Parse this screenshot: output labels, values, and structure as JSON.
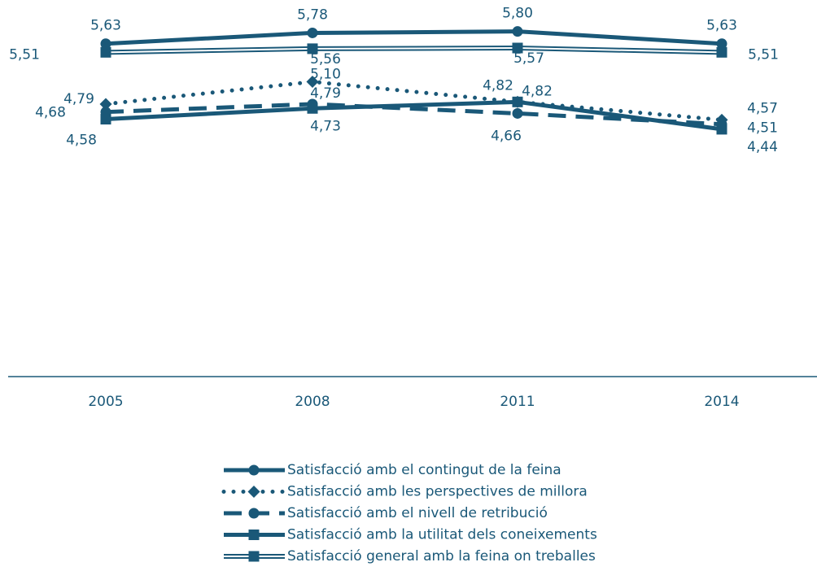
{
  "chart_data": {
    "type": "line",
    "categories": [
      "2005",
      "2008",
      "2011",
      "2014"
    ],
    "ylim": [
      1,
      6
    ],
    "series": [
      {
        "name": "Satisfacció amb el contingut de la feina",
        "color": "#1a5878",
        "style": "solid",
        "marker": "circle",
        "values": [
          5.63,
          5.78,
          5.8,
          5.63
        ],
        "value_labels": [
          "5,63",
          "5,78",
          "5,80",
          "5,63"
        ]
      },
      {
        "name": "Satisfacció amb les perspectives de millora",
        "color": "#1a5878",
        "style": "dotted",
        "marker": "diamond",
        "values": [
          4.79,
          5.1,
          4.82,
          4.57
        ],
        "value_labels": [
          "4,79",
          "5,10",
          "4,82",
          "4,57"
        ]
      },
      {
        "name": "Satisfacció amb el nivell de retribució",
        "color": "#1a5878",
        "style": "dashed",
        "marker": "circle",
        "values": [
          4.68,
          4.79,
          4.66,
          4.51
        ],
        "value_labels": [
          "4,68",
          "4,79",
          "4,66",
          "4,51"
        ]
      },
      {
        "name": "Satisfacció amb la utilitat dels coneixements",
        "color": "#1a5878",
        "style": "solid",
        "marker": "square",
        "values": [
          4.58,
          4.73,
          4.82,
          4.44
        ],
        "value_labels": [
          "4,58",
          "4,73",
          "4,82",
          "4,44"
        ]
      },
      {
        "name": "Satisfacció general amb la feina on treballes",
        "color": "#1a5878",
        "style": "double",
        "marker": "square",
        "values": [
          5.51,
          5.56,
          5.57,
          5.51
        ],
        "value_labels": [
          "5,51",
          "5,56",
          "5,57",
          "5,51"
        ]
      }
    ]
  }
}
